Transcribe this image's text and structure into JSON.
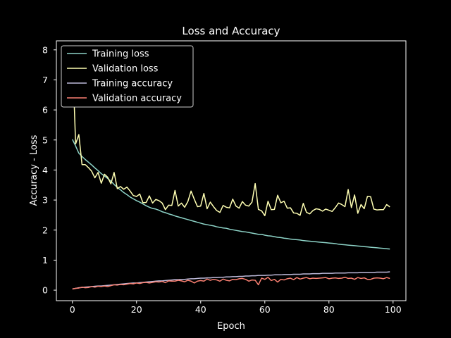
{
  "chart_data": {
    "type": "line",
    "title": "Loss and Accuracy",
    "xlabel": "Epoch",
    "ylabel": "Accuracy - Loss",
    "xlim": [
      -5,
      104
    ],
    "ylim": [
      -0.35,
      8.3
    ],
    "xticks": [
      "0",
      "20",
      "40",
      "60",
      "80",
      "100"
    ],
    "yticks": [
      "0",
      "1",
      "2",
      "3",
      "4",
      "5",
      "6",
      "7",
      "8"
    ],
    "grid": false,
    "legend_position": "top-left",
    "series": [
      {
        "name": "Training loss",
        "color": "#8dd3c7",
        "values": [
          5.02,
          4.8,
          4.56,
          4.45,
          4.35,
          4.26,
          4.17,
          4.07,
          3.98,
          3.88,
          3.8,
          3.72,
          3.63,
          3.52,
          3.42,
          3.34,
          3.25,
          3.18,
          3.1,
          3.04,
          2.98,
          2.93,
          2.87,
          2.81,
          2.76,
          2.72,
          2.7,
          2.66,
          2.61,
          2.58,
          2.54,
          2.51,
          2.47,
          2.44,
          2.41,
          2.38,
          2.35,
          2.32,
          2.29,
          2.26,
          2.23,
          2.2,
          2.18,
          2.16,
          2.14,
          2.11,
          2.09,
          2.07,
          2.06,
          2.03,
          2.01,
          1.99,
          1.97,
          1.95,
          1.94,
          1.92,
          1.9,
          1.88,
          1.86,
          1.86,
          1.83,
          1.81,
          1.8,
          1.78,
          1.76,
          1.75,
          1.73,
          1.72,
          1.7,
          1.69,
          1.68,
          1.67,
          1.65,
          1.64,
          1.63,
          1.62,
          1.61,
          1.6,
          1.59,
          1.58,
          1.57,
          1.56,
          1.55,
          1.53,
          1.52,
          1.51,
          1.5,
          1.49,
          1.48,
          1.47,
          1.46,
          1.45,
          1.44,
          1.43,
          1.42,
          1.41,
          1.4,
          1.39,
          1.38,
          1.37
        ]
      },
      {
        "name": "Validation loss",
        "color": "#ffffb3",
        "values": [
          7.95,
          4.87,
          5.18,
          4.18,
          4.18,
          4.08,
          3.96,
          3.74,
          3.92,
          3.56,
          3.86,
          3.76,
          3.54,
          3.92,
          3.38,
          3.45,
          3.36,
          3.43,
          3.3,
          3.15,
          3.12,
          3.2,
          2.91,
          2.92,
          3.14,
          2.9,
          3.02,
          2.98,
          2.9,
          2.68,
          2.83,
          2.82,
          3.32,
          2.8,
          2.9,
          2.76,
          2.95,
          3.3,
          3.03,
          2.78,
          2.8,
          3.22,
          2.71,
          2.93,
          2.78,
          2.65,
          2.59,
          2.82,
          2.76,
          2.74,
          3.03,
          2.8,
          2.73,
          2.95,
          2.83,
          2.8,
          2.93,
          3.55,
          2.69,
          2.64,
          2.48,
          2.96,
          2.68,
          2.69,
          3.16,
          2.91,
          2.96,
          2.73,
          2.74,
          2.57,
          2.56,
          2.49,
          2.89,
          2.59,
          2.54,
          2.65,
          2.71,
          2.69,
          2.63,
          2.7,
          2.66,
          2.62,
          2.75,
          2.9,
          2.85,
          2.78,
          3.35,
          2.75,
          3.17,
          2.56,
          2.85,
          2.71,
          3.12,
          3.11,
          2.7,
          2.67,
          2.68,
          2.68,
          2.85,
          2.77
        ]
      },
      {
        "name": "Training accuracy",
        "color": "#bebada",
        "values": [
          0.04,
          0.06,
          0.08,
          0.09,
          0.1,
          0.11,
          0.12,
          0.13,
          0.14,
          0.14,
          0.15,
          0.16,
          0.17,
          0.18,
          0.19,
          0.2,
          0.21,
          0.22,
          0.23,
          0.24,
          0.24,
          0.25,
          0.26,
          0.27,
          0.28,
          0.29,
          0.3,
          0.31,
          0.31,
          0.32,
          0.33,
          0.34,
          0.35,
          0.35,
          0.36,
          0.36,
          0.37,
          0.38,
          0.38,
          0.39,
          0.4,
          0.4,
          0.41,
          0.41,
          0.42,
          0.42,
          0.43,
          0.43,
          0.44,
          0.44,
          0.45,
          0.45,
          0.46,
          0.46,
          0.47,
          0.47,
          0.48,
          0.48,
          0.49,
          0.49,
          0.49,
          0.5,
          0.5,
          0.51,
          0.51,
          0.51,
          0.52,
          0.52,
          0.52,
          0.53,
          0.53,
          0.53,
          0.54,
          0.54,
          0.54,
          0.55,
          0.55,
          0.55,
          0.56,
          0.56,
          0.56,
          0.56,
          0.57,
          0.57,
          0.57,
          0.57,
          0.58,
          0.58,
          0.58,
          0.58,
          0.59,
          0.59,
          0.59,
          0.59,
          0.59,
          0.6,
          0.6,
          0.6,
          0.6,
          0.61
        ]
      },
      {
        "name": "Validation accuracy",
        "color": "#fb8072",
        "values": [
          0.04,
          0.06,
          0.07,
          0.1,
          0.08,
          0.09,
          0.12,
          0.1,
          0.13,
          0.12,
          0.14,
          0.12,
          0.15,
          0.18,
          0.17,
          0.19,
          0.18,
          0.2,
          0.22,
          0.21,
          0.24,
          0.22,
          0.25,
          0.26,
          0.24,
          0.26,
          0.28,
          0.27,
          0.29,
          0.25,
          0.31,
          0.3,
          0.3,
          0.33,
          0.31,
          0.28,
          0.33,
          0.3,
          0.24,
          0.3,
          0.32,
          0.3,
          0.37,
          0.33,
          0.36,
          0.34,
          0.3,
          0.37,
          0.33,
          0.31,
          0.36,
          0.35,
          0.38,
          0.39,
          0.36,
          0.3,
          0.34,
          0.33,
          0.18,
          0.4,
          0.36,
          0.43,
          0.32,
          0.36,
          0.27,
          0.36,
          0.34,
          0.38,
          0.4,
          0.35,
          0.42,
          0.37,
          0.4,
          0.42,
          0.38,
          0.4,
          0.39,
          0.4,
          0.41,
          0.42,
          0.38,
          0.4,
          0.41,
          0.39,
          0.4,
          0.43,
          0.39,
          0.4,
          0.36,
          0.42,
          0.39,
          0.41,
          0.36,
          0.36,
          0.4,
          0.41,
          0.4,
          0.38,
          0.42,
          0.39
        ]
      }
    ]
  }
}
